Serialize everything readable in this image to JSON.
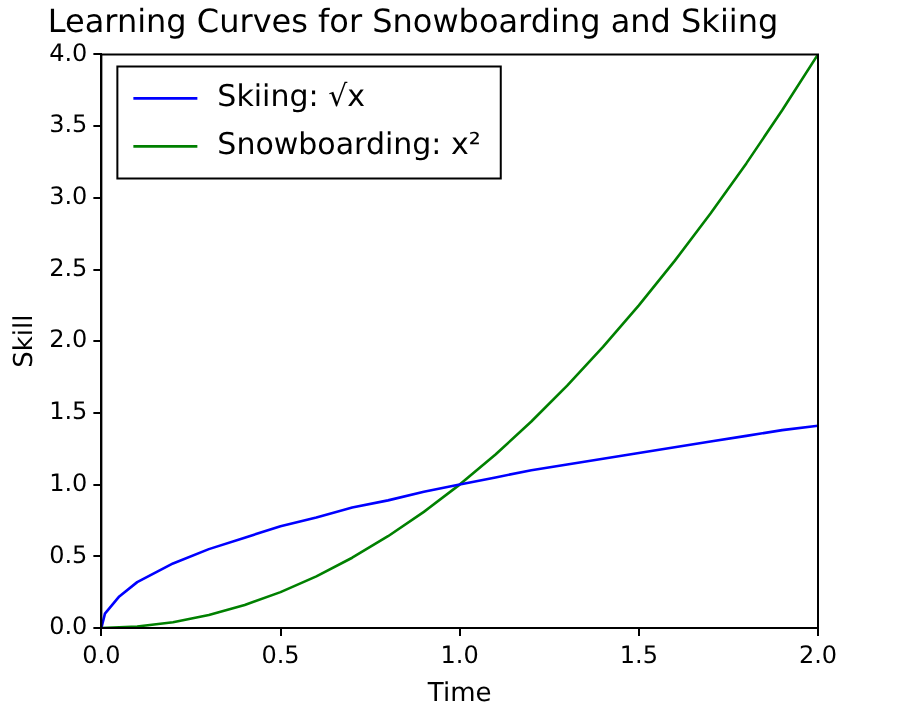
{
  "chart_data": {
    "type": "line",
    "title": "Learning Curves for Snowboarding and Skiing",
    "xlabel": "Time",
    "ylabel": "Skill",
    "series": [
      {
        "name": "Skiing: √x",
        "color": "#0000ff",
        "x": [
          0,
          0.01,
          0.05,
          0.1,
          0.2,
          0.3,
          0.4,
          0.5,
          0.6,
          0.7,
          0.8,
          0.9,
          1.0,
          1.1,
          1.2,
          1.3,
          1.4,
          1.5,
          1.6,
          1.7,
          1.8,
          1.9,
          2.0
        ],
        "values": [
          0,
          0.1,
          0.22,
          0.32,
          0.45,
          0.55,
          0.63,
          0.71,
          0.77,
          0.84,
          0.89,
          0.95,
          1.0,
          1.05,
          1.1,
          1.14,
          1.18,
          1.22,
          1.26,
          1.3,
          1.34,
          1.38,
          1.41
        ]
      },
      {
        "name": "Snowboarding: x²",
        "color": "#008000",
        "x": [
          0,
          0.1,
          0.2,
          0.3,
          0.4,
          0.5,
          0.6,
          0.7,
          0.8,
          0.9,
          1.0,
          1.1,
          1.2,
          1.3,
          1.4,
          1.5,
          1.6,
          1.7,
          1.8,
          1.9,
          2.0
        ],
        "values": [
          0,
          0.01,
          0.04,
          0.09,
          0.16,
          0.25,
          0.36,
          0.49,
          0.64,
          0.81,
          1,
          1.21,
          1.44,
          1.69,
          1.96,
          2.25,
          2.56,
          2.89,
          3.24,
          3.61,
          4
        ]
      }
    ],
    "xlim": [
      0,
      2
    ],
    "ylim": [
      0,
      4
    ],
    "xticks": [
      {
        "value": 0,
        "label": "0.0"
      },
      {
        "value": 0.5,
        "label": "0.5"
      },
      {
        "value": 1,
        "label": "1.0"
      },
      {
        "value": 1.5,
        "label": "1.5"
      },
      {
        "value": 2,
        "label": "2.0"
      }
    ],
    "yticks": [
      {
        "value": 0,
        "label": "0.0"
      },
      {
        "value": 0.5,
        "label": "0.5"
      },
      {
        "value": 1,
        "label": "1.0"
      },
      {
        "value": 1.5,
        "label": "1.5"
      },
      {
        "value": 2,
        "label": "2.0"
      },
      {
        "value": 2.5,
        "label": "2.5"
      },
      {
        "value": 3,
        "label": "3.0"
      },
      {
        "value": 3.5,
        "label": "3.5"
      },
      {
        "value": 4,
        "label": "4.0"
      }
    ],
    "grid": false,
    "legend": "top left",
    "marker": "none",
    "line_style": "solid"
  }
}
